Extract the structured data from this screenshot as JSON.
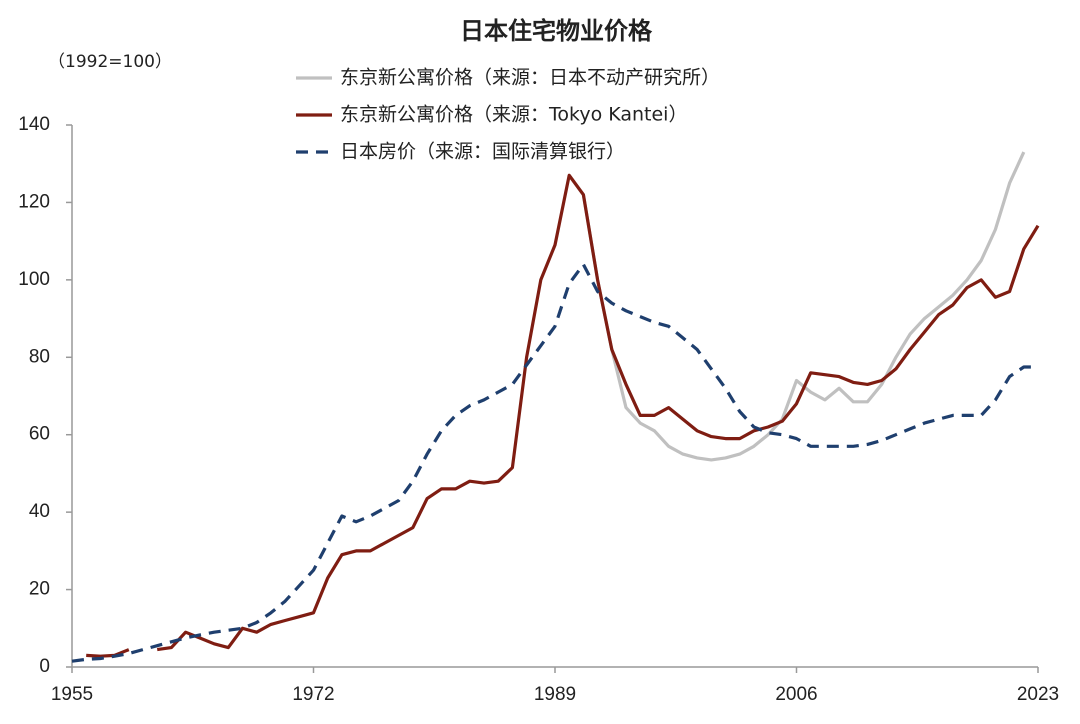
{
  "chart_data": {
    "type": "line",
    "title": "日本住宅物业价格",
    "subtitle": "（1992=100）",
    "x": [
      1955,
      1956,
      1957,
      1958,
      1959,
      1960,
      1961,
      1962,
      1963,
      1964,
      1965,
      1966,
      1967,
      1968,
      1969,
      1970,
      1971,
      1972,
      1973,
      1974,
      1975,
      1976,
      1977,
      1978,
      1979,
      1980,
      1981,
      1982,
      1983,
      1984,
      1985,
      1986,
      1987,
      1988,
      1989,
      1990,
      1991,
      1992,
      1993,
      1994,
      1995,
      1996,
      1997,
      1998,
      1999,
      2000,
      2001,
      2002,
      2003,
      2004,
      2005,
      2006,
      2007,
      2008,
      2009,
      2010,
      2011,
      2012,
      2013,
      2014,
      2015,
      2016,
      2017,
      2018,
      2019,
      2020,
      2021,
      2022,
      2023
    ],
    "series": [
      {
        "name": "东京新公寓价格（来源：日本不动产研究所）",
        "color": "#c0c0c0",
        "dash": false,
        "values": [
          null,
          null,
          null,
          null,
          null,
          null,
          null,
          null,
          null,
          null,
          null,
          null,
          null,
          null,
          null,
          null,
          null,
          null,
          null,
          null,
          null,
          null,
          null,
          null,
          null,
          null,
          null,
          null,
          null,
          null,
          null,
          null,
          null,
          null,
          null,
          127,
          122,
          100,
          82,
          67,
          63,
          61,
          57,
          55,
          54,
          53.5,
          54,
          55,
          57,
          60,
          64,
          74,
          71,
          69,
          72,
          68.5,
          68.5,
          73,
          80,
          86,
          90,
          93,
          96,
          100,
          105,
          113,
          125,
          133,
          null
        ]
      },
      {
        "name": "东京新公寓价格（来源：Tokyo Kantei）",
        "color": "#7f1d12",
        "dash": false,
        "values": [
          null,
          3,
          2.8,
          3,
          4.5,
          null,
          4.5,
          5,
          9,
          7.5,
          6,
          5,
          10,
          9,
          11,
          12,
          13,
          14,
          23,
          29,
          30,
          30,
          32,
          34,
          36,
          43.5,
          46,
          46,
          48,
          47.5,
          48,
          51.5,
          80,
          100,
          109,
          127,
          122,
          100,
          82,
          73,
          65,
          65,
          67,
          64,
          61,
          59.5,
          59,
          59,
          61,
          62,
          63.5,
          68,
          76,
          75.5,
          75,
          73.5,
          73,
          74,
          77,
          82,
          86.5,
          91,
          93.5,
          98,
          100,
          95.5,
          97,
          108,
          114
        ]
      },
      {
        "name": "日本房价（来源：国际清算银行）",
        "color": "#1f3f6e",
        "dash": true,
        "values": [
          1.5,
          2,
          2.2,
          2.8,
          3.5,
          4.5,
          5.5,
          6.5,
          7.5,
          8.3,
          9,
          9.5,
          10,
          11.5,
          14,
          17,
          21,
          25,
          32,
          39,
          37.5,
          39,
          41,
          43,
          48,
          55,
          61,
          65,
          67.5,
          69,
          71,
          73,
          78,
          83,
          88,
          99,
          104,
          97,
          94,
          92,
          90.5,
          89,
          88,
          85,
          82,
          77,
          72,
          66,
          62,
          60.5,
          60,
          59,
          57,
          57,
          57,
          57,
          57.5,
          58.5,
          60,
          61.5,
          63,
          64,
          65,
          65,
          65,
          69,
          75,
          77.5,
          77.5
        ]
      }
    ],
    "xlim": [
      1955,
      2023
    ],
    "xticks": [
      1955,
      1972,
      1989,
      2006,
      2023
    ],
    "ylim": [
      0,
      140
    ],
    "yticks": [
      0,
      20,
      40,
      60,
      80,
      100,
      120,
      140
    ],
    "grid": false
  }
}
